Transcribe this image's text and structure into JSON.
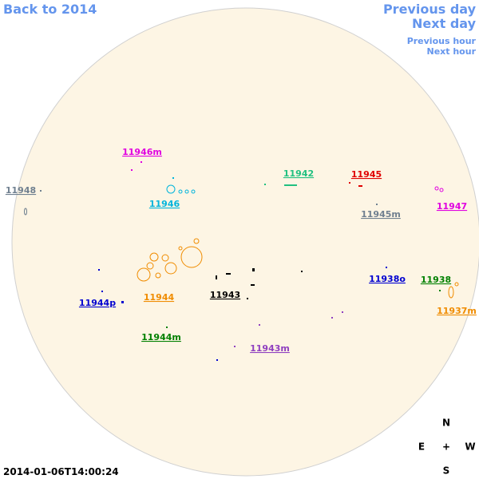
{
  "navigation": {
    "back": "Back to 2014",
    "previous_day": "Previous day",
    "next_day": "Next day",
    "previous_hour": "Previous hour",
    "next_hour": "Next hour"
  },
  "regions": [
    {
      "label": "11946m",
      "color": "#e000e0"
    },
    {
      "label": "11948",
      "color": "#708090"
    },
    {
      "label": "11946",
      "color": "#00b4dc"
    },
    {
      "label": "11942",
      "color": "#20c080"
    },
    {
      "label": "11945",
      "color": "#e00000"
    },
    {
      "label": "11945m",
      "color": "#708090"
    },
    {
      "label": "11947",
      "color": "#e000e0"
    },
    {
      "label": "11938o",
      "color": "#0000d0"
    },
    {
      "label": "11938",
      "color": "#008000"
    },
    {
      "label": "11937m",
      "color": "#f08c00"
    },
    {
      "label": "11944p",
      "color": "#0000d0"
    },
    {
      "label": "11944",
      "color": "#f08c00"
    },
    {
      "label": "11943",
      "color": "#000000"
    },
    {
      "label": "11944m",
      "color": "#008000"
    },
    {
      "label": "11943m",
      "color": "#9040c0"
    }
  ],
  "compass": {
    "north": "N",
    "east": "E",
    "center": "+",
    "west": "W",
    "south": "S"
  },
  "timestamp": "2014-01-06T14:00:24"
}
